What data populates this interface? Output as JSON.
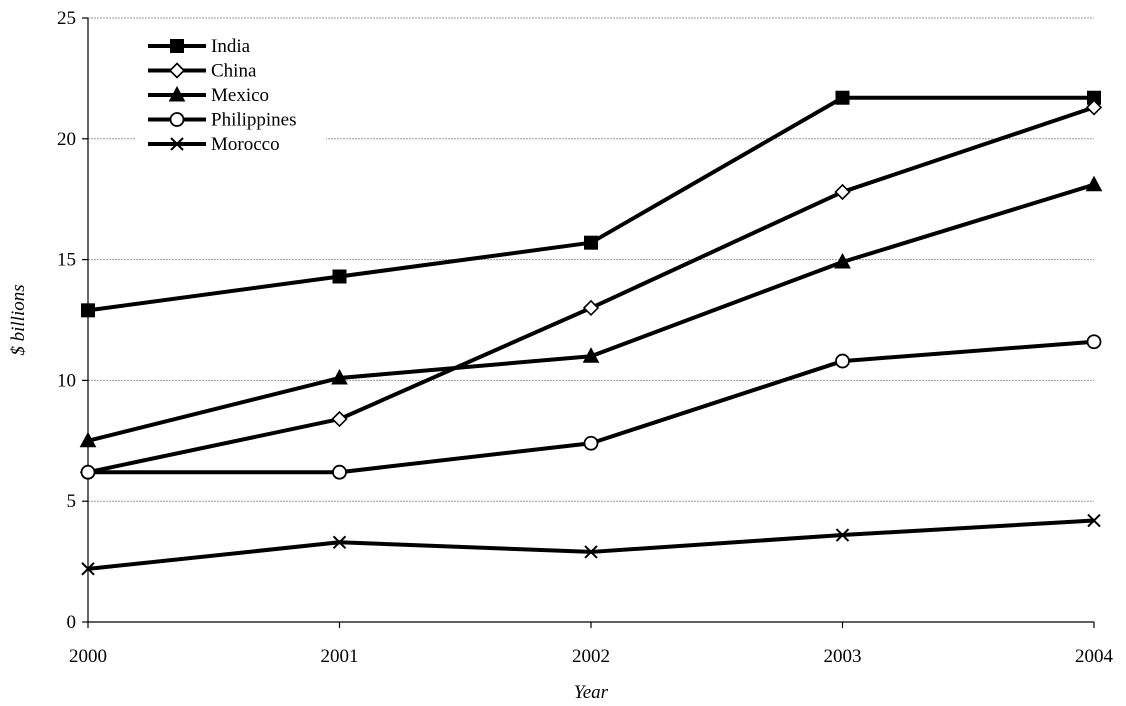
{
  "chart_data": {
    "type": "line",
    "title": "",
    "xlabel": "Year",
    "ylabel": "$ billions",
    "x": [
      "2000",
      "2001",
      "2002",
      "2003",
      "2004"
    ],
    "ylim": [
      0,
      25
    ],
    "yticks": [
      0,
      5,
      10,
      15,
      20,
      25
    ],
    "grid": true,
    "legend_position": "top-left",
    "series": [
      {
        "name": "India",
        "marker": "square-filled",
        "values": [
          12.9,
          14.3,
          15.7,
          21.7,
          21.7
        ]
      },
      {
        "name": "China",
        "marker": "diamond-open",
        "values": [
          6.2,
          8.4,
          13.0,
          17.8,
          21.3
        ]
      },
      {
        "name": "Mexico",
        "marker": "triangle-filled",
        "values": [
          7.5,
          10.1,
          11.0,
          14.9,
          18.1
        ]
      },
      {
        "name": "Philippines",
        "marker": "circle-open",
        "values": [
          6.2,
          6.2,
          7.4,
          10.8,
          11.6
        ]
      },
      {
        "name": "Morocco",
        "marker": "x",
        "values": [
          2.2,
          3.3,
          2.9,
          3.6,
          4.2
        ]
      }
    ],
    "colors": {
      "line": "#000000",
      "grid": "#9a9a9a",
      "background": "#ffffff"
    }
  }
}
